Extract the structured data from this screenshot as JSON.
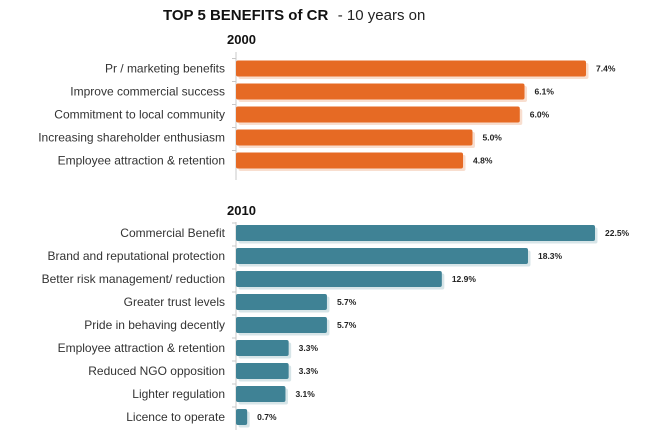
{
  "title": {
    "main": "TOP 5 BENEFITS of CR",
    "subtitle": "- 10 years on"
  },
  "colors": {
    "orange": "#e66a24",
    "blue": "#3f8295",
    "orange_shadow": "#f2c2a7",
    "blue_shadow": "#b7cfd6",
    "axis": "#c8c8c8",
    "text": "#333333"
  },
  "chart_data": [
    {
      "type": "bar",
      "title": "2000",
      "categories": [
        "Pr / marketing benefits",
        "Improve commercial success",
        "Commitment to local community",
        "Increasing shareholder enthusiasm",
        "Employee attraction & retention"
      ],
      "values": [
        7.4,
        6.1,
        6.0,
        5.0,
        4.8
      ],
      "value_labels": [
        "7.4%",
        "6.1%",
        "6.0%",
        "5.0%",
        "4.8%"
      ],
      "xlim": [
        0,
        7.4
      ],
      "grid": false,
      "color": "#e66a24"
    },
    {
      "type": "bar",
      "title": "2010",
      "categories": [
        "Commercial Benefit",
        "Brand and reputational protection",
        "Better risk management/ reduction",
        "Greater trust levels",
        "Pride in behaving decently",
        "Employee attraction & retention",
        "Reduced NGO opposition",
        "Lighter regulation",
        "Licence to operate"
      ],
      "values": [
        22.5,
        18.3,
        12.9,
        5.7,
        5.7,
        3.3,
        3.3,
        3.1,
        0.7
      ],
      "value_labels": [
        "22.5%",
        "18.3%",
        "12.9%",
        "5.7%",
        "5.7%",
        "3.3%",
        "3.3%",
        "3.1%",
        "0.7%"
      ],
      "xlim": [
        0,
        22.5
      ],
      "grid": false,
      "color": "#3f8295"
    }
  ]
}
